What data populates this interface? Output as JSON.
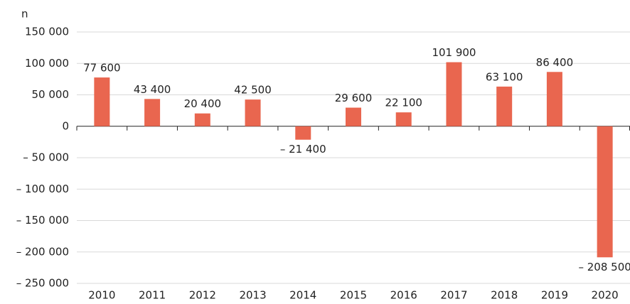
{
  "chart_data": {
    "type": "bar",
    "y_axis_label": "n",
    "categories": [
      "2010",
      "2011",
      "2012",
      "2013",
      "2014",
      "2015",
      "2016",
      "2017",
      "2018",
      "2019",
      "2020"
    ],
    "values": [
      77600,
      43400,
      20400,
      42500,
      -21400,
      29600,
      22100,
      101900,
      63100,
      86400,
      -208500
    ],
    "value_labels": [
      "77 600",
      "43 400",
      "20 400",
      "42 500",
      "– 21 400",
      "29 600",
      "22 100",
      "101 900",
      "63 100",
      "86 400",
      "– 208 500"
    ],
    "color": "#e9664f",
    "ylim": [
      -250000,
      150000
    ],
    "yticks": [
      {
        "value": 150000,
        "label": "150 000"
      },
      {
        "value": 100000,
        "label": "100 000"
      },
      {
        "value": 50000,
        "label": "50 000"
      },
      0,
      {
        "value": -50000,
        "label": "– 50 000"
      },
      {
        "value": -100000,
        "label": "– 100 000"
      },
      {
        "value": -150000,
        "label": "– 150 000"
      },
      {
        "value": -200000,
        "label": "– 200 000"
      },
      {
        "value": -250000,
        "label": "– 250 000"
      }
    ],
    "grid": true
  }
}
